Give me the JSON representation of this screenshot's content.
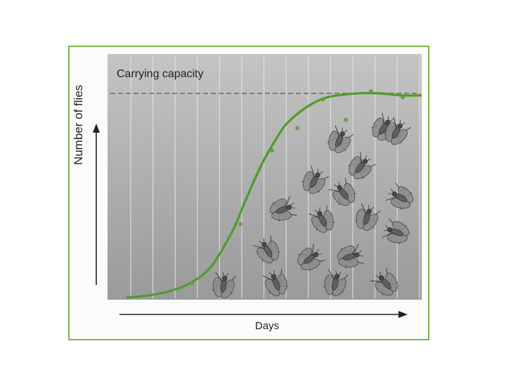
{
  "chart_data": {
    "type": "line",
    "title": "",
    "xlabel": "Days",
    "ylabel": "Number of flies",
    "annotations": [
      "Carrying capacity"
    ],
    "carrying_capacity": 1.0,
    "xlim": [
      0,
      14
    ],
    "ylim": [
      0,
      1.0
    ],
    "x_ticks": [],
    "y_ticks": [],
    "grid": "vertical",
    "legend": "none",
    "colors": {
      "curve": "#4f9b2d",
      "points": "#5aa33a",
      "frame": "#7db44a",
      "panel_top": "#c4c4c4",
      "panel_bottom": "#9a9a9a",
      "grid": "#e4e4e4",
      "dashed_line": "#555555",
      "fly_body": "#6c6c6c"
    },
    "series": [
      {
        "type": "line",
        "x": [
          0,
          1,
          2,
          3,
          4,
          5,
          5.5,
          6,
          6.5,
          7,
          7.5,
          8,
          8.5,
          9,
          9.5,
          10,
          11,
          12,
          13,
          14
        ],
        "y": [
          0.0,
          0.01,
          0.03,
          0.07,
          0.15,
          0.32,
          0.44,
          0.56,
          0.67,
          0.76,
          0.84,
          0.89,
          0.93,
          0.96,
          0.98,
          0.99,
          1.0,
          1.0,
          0.99,
          0.99
        ]
      },
      {
        "type": "scatter",
        "x": [
          3.1,
          5.4,
          6.9,
          8.1,
          9.3,
          10.4,
          11.6,
          13.1
        ],
        "y": [
          0.07,
          0.36,
          0.72,
          0.83,
          0.97,
          0.87,
          1.01,
          0.98
        ]
      }
    ],
    "flies": [
      {
        "x": 10.1,
        "y": 0.77,
        "angle": 25
      },
      {
        "x": 12.2,
        "y": 0.83,
        "angle": 35
      },
      {
        "x": 12.8,
        "y": 0.81,
        "angle": 30
      },
      {
        "x": 11.1,
        "y": 0.64,
        "angle": 40
      },
      {
        "x": 8.9,
        "y": 0.57,
        "angle": 30
      },
      {
        "x": 10.3,
        "y": 0.51,
        "angle": -35
      },
      {
        "x": 13.0,
        "y": 0.49,
        "angle": -60
      },
      {
        "x": 7.4,
        "y": 0.43,
        "angle": 70
      },
      {
        "x": 9.3,
        "y": 0.38,
        "angle": -25
      },
      {
        "x": 11.4,
        "y": 0.39,
        "angle": 20
      },
      {
        "x": 6.7,
        "y": 0.23,
        "angle": -30
      },
      {
        "x": 8.7,
        "y": 0.19,
        "angle": 55
      },
      {
        "x": 10.6,
        "y": 0.2,
        "angle": 75
      },
      {
        "x": 12.8,
        "y": 0.32,
        "angle": -70
      },
      {
        "x": 4.6,
        "y": 0.06,
        "angle": 10
      },
      {
        "x": 7.1,
        "y": 0.07,
        "angle": -20
      },
      {
        "x": 9.9,
        "y": 0.07,
        "angle": 15
      },
      {
        "x": 12.3,
        "y": 0.07,
        "angle": -40
      }
    ]
  }
}
